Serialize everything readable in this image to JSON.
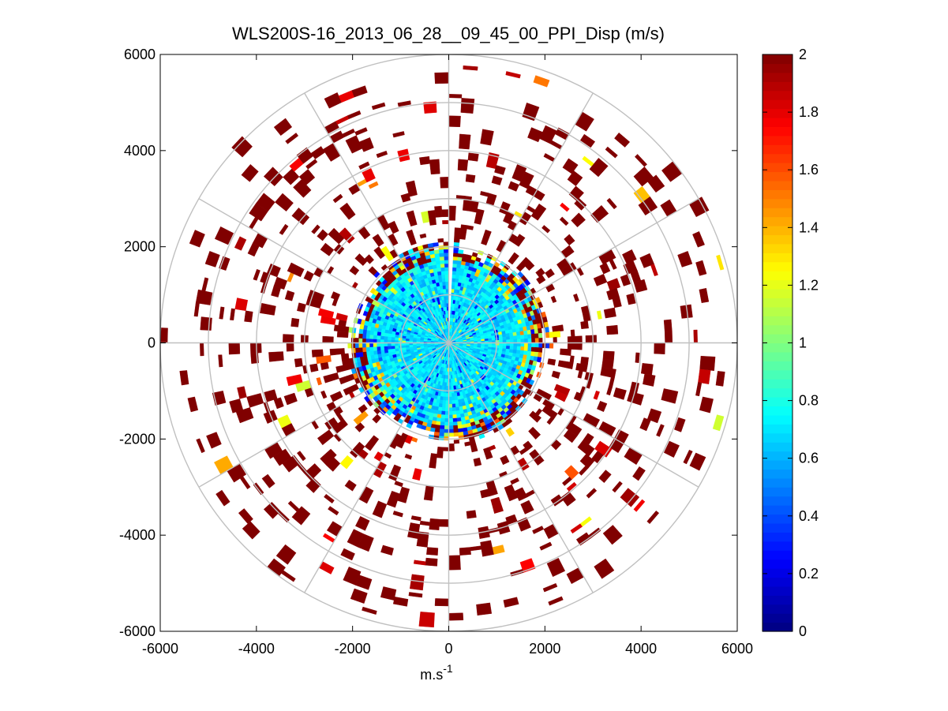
{
  "chart_data": {
    "type": "heatmap",
    "subtype": "polar-ppi",
    "title": "WLS200S-16_2013_06_28__09_45_00_PPI_Disp (m/s)",
    "xlabel": "m.s",
    "xlabel_superscript": "-1",
    "ylabel": "",
    "xlim": [
      -6000,
      6000
    ],
    "ylim": [
      -6000,
      6000
    ],
    "xticks": [
      -6000,
      -4000,
      -2000,
      0,
      2000,
      4000,
      6000
    ],
    "yticks": [
      -6000,
      -4000,
      -2000,
      0,
      2000,
      4000,
      6000
    ],
    "xtick_labels": [
      "-6000",
      "-4000",
      "-2000",
      "0",
      "2000",
      "4000",
      "6000"
    ],
    "ytick_labels": [
      "6000",
      "4000",
      "2000",
      "0",
      "-2000",
      "-4000",
      "-6000"
    ],
    "polar_grid": {
      "ring_radii": [
        1000,
        2000,
        3000,
        4000,
        5000,
        6000
      ],
      "spoke_angles_deg": [
        0,
        30,
        60,
        90,
        120,
        150,
        180,
        210,
        240,
        270,
        300,
        330
      ]
    },
    "colorbar": {
      "colormap": "jet",
      "range": [
        0,
        2
      ],
      "ticks": [
        0,
        0.2,
        0.4,
        0.6,
        0.8,
        1,
        1.2,
        1.4,
        1.6,
        1.8,
        2
      ],
      "tick_labels": [
        "0",
        "0.2",
        "0.4",
        "0.6",
        "0.8",
        "1",
        "1.2",
        "1.4",
        "1.6",
        "1.8",
        "2"
      ]
    },
    "field": {
      "description_values": "Inner disc (r < ~2000 m) mostly 0.5-0.8 m/s with scattered 0.1-0.4 and 1.0-1.4 patches; rim near r=1800-2100 m reaches 1.2-2; outer rings (r 2000-6000 m) sparse bins mostly saturated at 2 m/s with occasional 1.5-1.9; blank wedge near azimuth 0 (north) at r < 2000.",
      "inner_radius_m": 2100,
      "outer_radius_m": 6000,
      "max_sparse_radius_m": 5900,
      "bins_azimuth_step_deg": 3,
      "bins_range_step_m": 75,
      "blank_wedge_azimuth_deg": [
        -1.5,
        1.5
      ]
    }
  }
}
